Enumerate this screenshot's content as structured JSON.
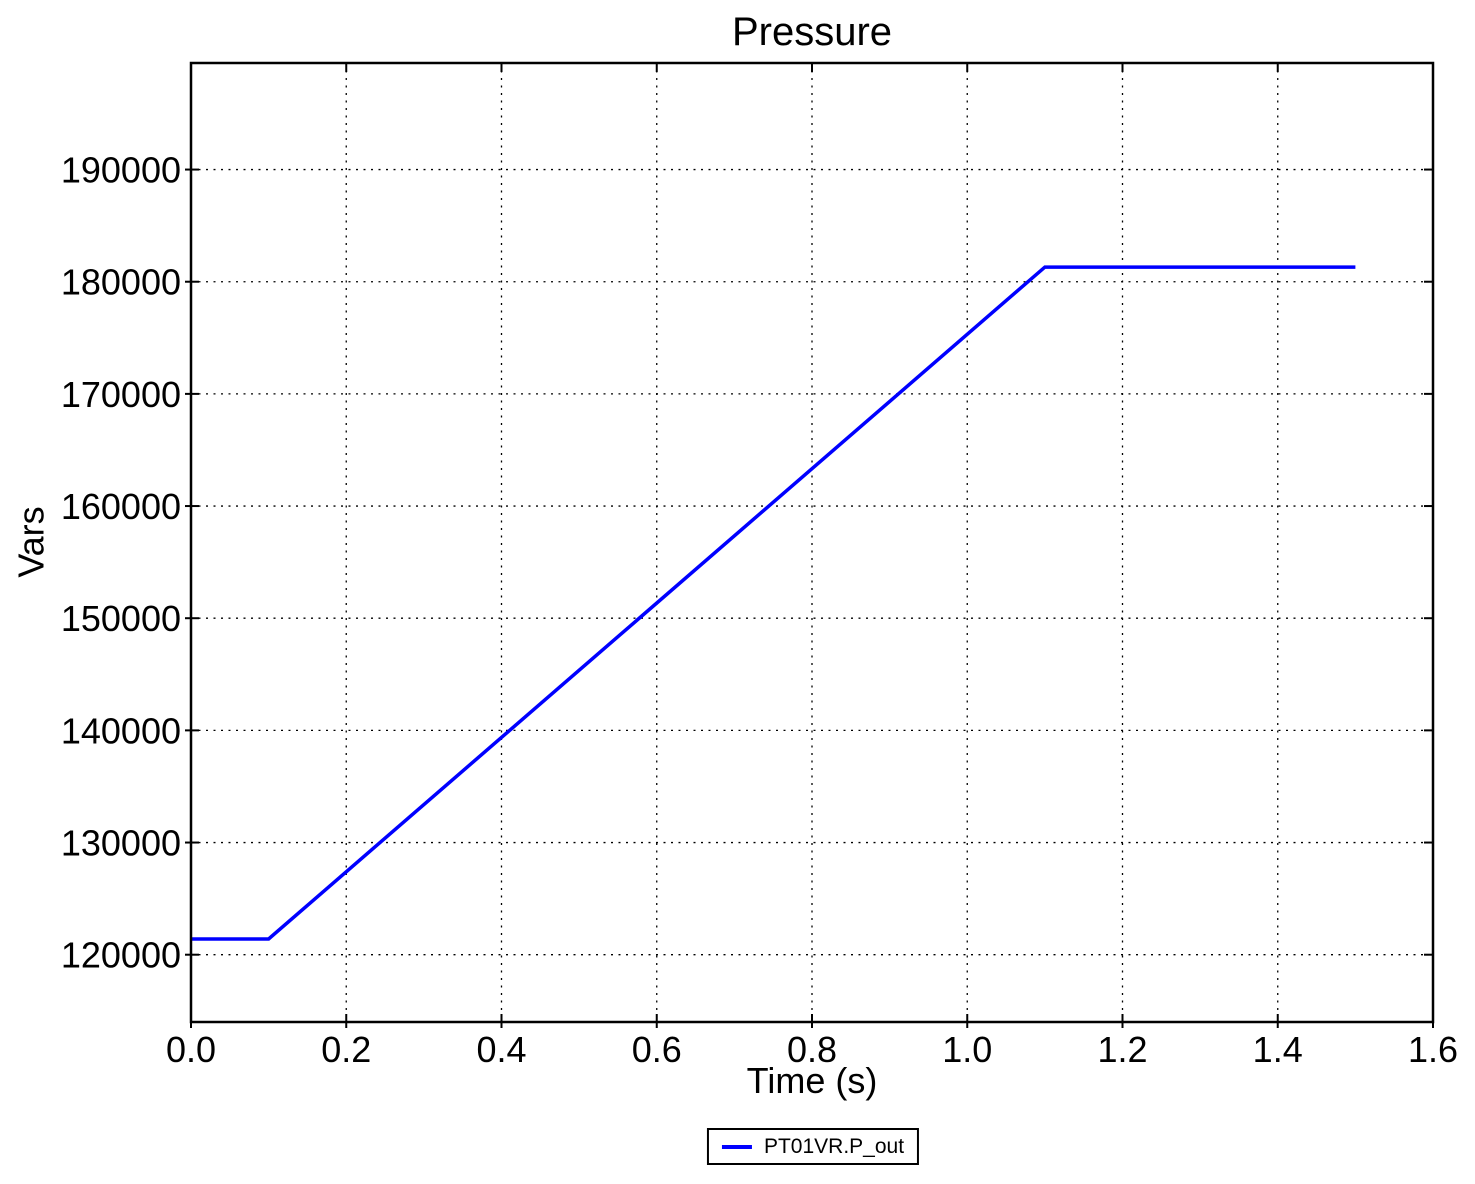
{
  "chart_data": {
    "type": "line",
    "title": "Pressure",
    "xlabel": "Time (s)",
    "ylabel": "Vars",
    "xlim": [
      0.0,
      1.6
    ],
    "ylim": [
      114000,
      199500
    ],
    "xticks": [
      0.0,
      0.2,
      0.4,
      0.6,
      0.8,
      1.0,
      1.2,
      1.4,
      1.6
    ],
    "xtick_labels": [
      "0.0",
      "0.2",
      "0.4",
      "0.6",
      "0.8",
      "1.0",
      "1.2",
      "1.4",
      "1.6"
    ],
    "yticks": [
      120000,
      130000,
      140000,
      150000,
      160000,
      170000,
      180000,
      190000
    ],
    "ytick_labels": [
      "120000",
      "130000",
      "140000",
      "150000",
      "160000",
      "170000",
      "180000",
      "190000"
    ],
    "grid": true,
    "grid_style": "dotted",
    "grid_color": "#000000",
    "axes_color": "#000000",
    "background_color": "#ffffff",
    "legend_position": "bottom-center-outside",
    "series": [
      {
        "name": "PT01VR.P_out",
        "color": "#0000ff",
        "x": [
          0.0,
          0.1,
          1.1,
          1.5
        ],
        "y": [
          121400,
          121400,
          181300,
          181300
        ]
      }
    ]
  }
}
